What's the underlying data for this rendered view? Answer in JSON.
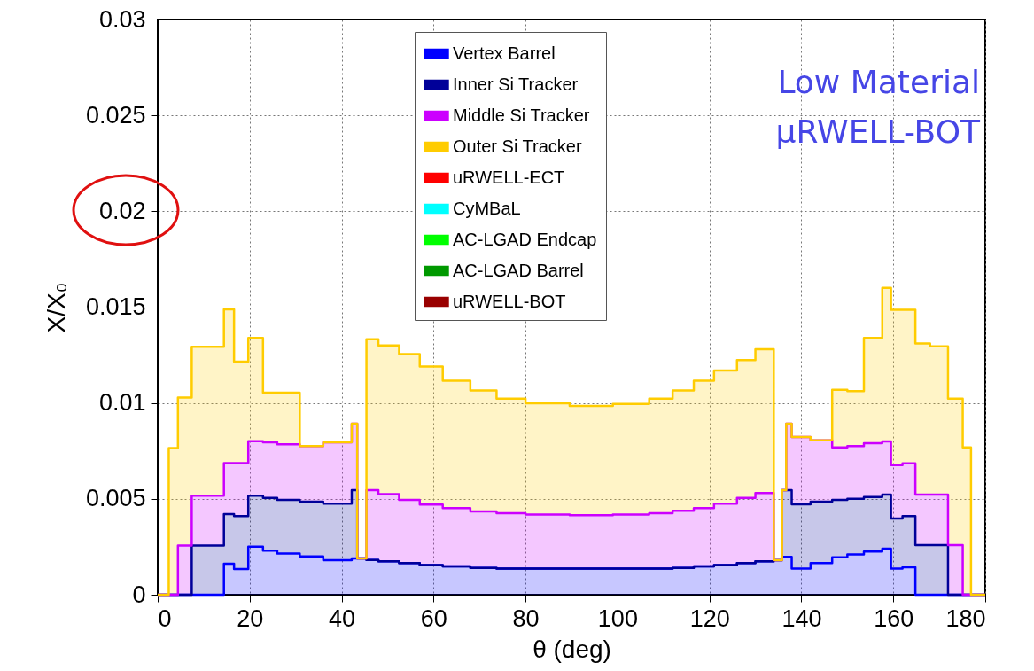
{
  "chart_data": {
    "type": "area",
    "stacked": true,
    "xlabel": "θ (deg)",
    "ylabel": "X/X₀",
    "legend": "top",
    "grid": true,
    "annotations": [
      "Low Material",
      "μRWELL-BOT"
    ],
    "xlim": [
      0,
      180
    ],
    "xticks": [
      0,
      20,
      40,
      60,
      80,
      100,
      120,
      140,
      160,
      180
    ],
    "ylim": [
      0,
      0.03
    ],
    "yticks": [
      0,
      0.005,
      0.01,
      0.015,
      0.02,
      0.025,
      0.03
    ],
    "x": [
      0,
      2.4,
      4.4,
      7.4,
      14.4,
      16.6,
      19.7,
      22.9,
      26,
      30.9,
      36,
      42.2,
      43.4,
      45.4,
      48,
      52.5,
      57,
      62,
      68,
      73.7,
      80,
      89.6,
      99,
      106.9,
      112,
      116.6,
      121,
      126,
      130,
      134,
      135.8,
      136.7,
      137.9,
      142,
      146.7,
      150,
      153.6,
      157.6,
      159.5,
      162,
      164.8,
      168,
      171.9,
      175.1,
      176.9,
      180
    ],
    "series": [
      {
        "name": "Vertex Barrel",
        "color": "#0000ff",
        "values": [
          0,
          0,
          0,
          0,
          0.00162,
          0.00134,
          0.00251,
          0.0023,
          0.00215,
          0.002,
          0.0018,
          0.0019,
          0.0019,
          0.00182,
          0.00175,
          0.00165,
          0.00155,
          0.00148,
          0.0014,
          0.00136,
          0.00136,
          0.00136,
          0.00136,
          0.00136,
          0.0014,
          0.00148,
          0.00155,
          0.00165,
          0.00175,
          0.0018,
          0.00198,
          0.00198,
          0.00136,
          0.00165,
          0.00195,
          0.0021,
          0.00225,
          0.0024,
          0.00136,
          0.00143,
          0,
          0,
          0,
          0,
          0,
          0
        ]
      },
      {
        "name": "Inner Si Tracker",
        "color": "#000099",
        "values": [
          0,
          0,
          0,
          0.00256,
          0.00259,
          0.00276,
          0.00266,
          0.00275,
          0.0028,
          0.00285,
          0.00295,
          0.00355,
          0,
          0,
          0,
          0,
          0,
          0,
          0,
          0,
          0,
          0,
          0,
          0,
          0,
          0,
          0,
          0,
          0,
          0,
          0.00347,
          0.00347,
          0.00335,
          0.0032,
          0.003,
          0.0029,
          0.00285,
          0.00282,
          0.00262,
          0.00267,
          0.00259,
          0.00259,
          0,
          0,
          0,
          0
        ]
      },
      {
        "name": "Middle Si Tracker",
        "color": "#cc00ff",
        "values": [
          0,
          0,
          0.00256,
          0.00261,
          0.00266,
          0.00277,
          0.00284,
          0.0029,
          0.0029,
          0.00291,
          0.0032,
          0.00347,
          0,
          0.00363,
          0.0035,
          0.0033,
          0.00315,
          0.00304,
          0.00295,
          0.00289,
          0.00282,
          0.00279,
          0.00282,
          0.00289,
          0.00298,
          0.00304,
          0.0032,
          0.0034,
          0.00355,
          0,
          0,
          0.00347,
          0.00352,
          0.0032,
          0.00274,
          0.00275,
          0.0028,
          0.00278,
          0.00278,
          0.00275,
          0.00263,
          0.00263,
          0.00259,
          0,
          0,
          0
        ]
      },
      {
        "name": "Outer Si Tracker",
        "color": "#ffcc00",
        "values": [
          0,
          0.00765,
          0.00772,
          0.00776,
          0.00802,
          0.00529,
          0.00538,
          0.00259,
          0.00269,
          0,
          0,
          0,
          0,
          0.00787,
          0.00775,
          0.0076,
          0.0072,
          0.00664,
          0.0063,
          0.00598,
          0.0058,
          0.0057,
          0.00577,
          0.00598,
          0.00627,
          0.00664,
          0.00695,
          0.00719,
          0.0075,
          0,
          0,
          0,
          0,
          0,
          0.003,
          0.00287,
          0.00549,
          0.008,
          0.0081,
          0.00801,
          0.00788,
          0.00773,
          0.00764,
          0.00769,
          0,
          0
        ]
      },
      {
        "name": "uRWELL-ECT",
        "color": "#ff0000",
        "values": [
          null,
          null,
          null,
          null,
          null,
          null,
          null,
          null,
          null,
          null,
          null,
          null,
          null,
          null,
          null,
          null,
          null,
          null,
          null,
          null,
          null,
          null,
          null,
          null,
          null,
          null,
          null,
          null,
          null,
          null,
          null,
          null,
          null,
          null,
          null,
          null,
          null,
          null,
          null,
          null,
          null,
          null,
          null,
          null,
          null,
          null
        ]
      },
      {
        "name": "CyMBaL",
        "color": "#00ffff",
        "values": [
          null,
          null,
          null,
          null,
          null,
          null,
          null,
          null,
          null,
          null,
          null,
          null,
          null,
          null,
          null,
          null,
          null,
          null,
          null,
          null,
          null,
          null,
          null,
          null,
          null,
          null,
          null,
          null,
          null,
          null,
          null,
          null,
          null,
          null,
          null,
          null,
          null,
          null,
          null,
          null,
          null,
          null,
          null,
          null,
          null,
          null
        ]
      },
      {
        "name": "AC-LGAD Endcap",
        "color": "#00ff00",
        "values": [
          null,
          null,
          null,
          null,
          null,
          null,
          null,
          null,
          null,
          null,
          null,
          null,
          null,
          null,
          null,
          null,
          null,
          null,
          null,
          null,
          null,
          null,
          null,
          null,
          null,
          null,
          null,
          null,
          null,
          null,
          null,
          null,
          null,
          null,
          null,
          null,
          null,
          null,
          null,
          null,
          null,
          null,
          null,
          null,
          null,
          null
        ]
      },
      {
        "name": "AC-LGAD Barrel",
        "color": "#009900",
        "values": [
          null,
          null,
          null,
          null,
          null,
          null,
          null,
          null,
          null,
          null,
          null,
          null,
          null,
          null,
          null,
          null,
          null,
          null,
          null,
          null,
          null,
          null,
          null,
          null,
          null,
          null,
          null,
          null,
          null,
          null,
          null,
          null,
          null,
          null,
          null,
          null,
          null,
          null,
          null,
          null,
          null,
          null,
          null,
          null,
          null,
          null
        ]
      },
      {
        "name": "uRWELL-BOT",
        "color": "#990000",
        "values": [
          null,
          null,
          null,
          null,
          null,
          null,
          null,
          null,
          null,
          null,
          null,
          null,
          null,
          null,
          null,
          null,
          null,
          null,
          null,
          null,
          null,
          null,
          null,
          null,
          null,
          null,
          null,
          null,
          null,
          null,
          null,
          null,
          null,
          null,
          null,
          null,
          null,
          null,
          null,
          null,
          null,
          null,
          null,
          null,
          null,
          null
        ]
      }
    ]
  }
}
